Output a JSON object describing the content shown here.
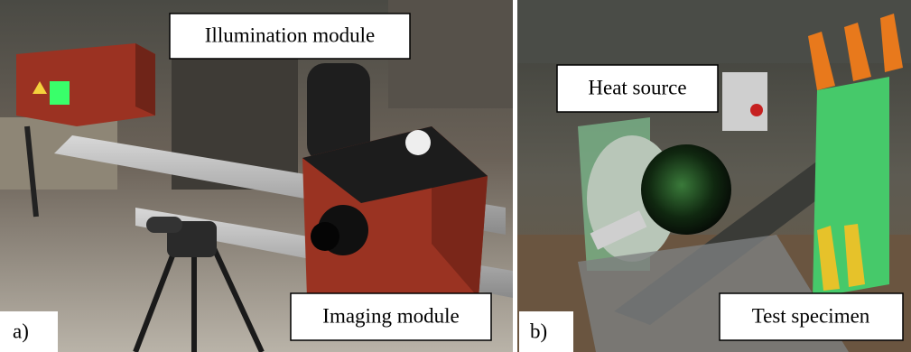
{
  "panels": [
    {
      "label": "a)",
      "annotations": [
        "Illumination module",
        "Imaging module"
      ]
    },
    {
      "label": "b)",
      "annotations": [
        "Heat source",
        "Test specimen"
      ]
    }
  ]
}
